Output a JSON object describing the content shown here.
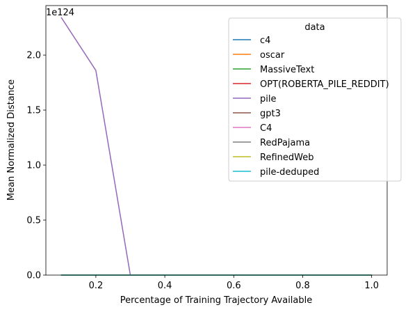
{
  "chart_data": {
    "type": "line",
    "title": "",
    "xlabel": "Percentage of Training Trajectory Available",
    "ylabel": "Mean Normalized Distance",
    "y_offset_text": "1e124",
    "y_scale_exponent": 124,
    "xlim": [
      0.055,
      1.045
    ],
    "ylim": [
      0,
      2.45
    ],
    "xticks": [
      0.2,
      0.4,
      0.6,
      0.8,
      1.0
    ],
    "xtick_labels": [
      "0.2",
      "0.4",
      "0.6",
      "0.8",
      "1.0"
    ],
    "yticks": [
      0,
      0.5,
      1.0,
      1.5,
      2.0
    ],
    "ytick_labels": [
      "0.0",
      "0.5",
      "1.0",
      "1.5",
      "2.0"
    ],
    "grid": false,
    "legend": {
      "title": "data",
      "placement": "top-right"
    },
    "x": [
      0.1,
      0.2,
      0.3,
      0.4,
      0.5,
      0.6,
      0.7,
      0.8,
      0.9,
      1.0
    ],
    "series": [
      {
        "name": "c4",
        "color": "#1f77b4",
        "values": [
          0,
          0,
          0,
          0,
          0,
          0,
          0,
          0,
          0,
          0
        ]
      },
      {
        "name": "oscar",
        "color": "#ff7f0e",
        "values": [
          0,
          0,
          0,
          0,
          0,
          0,
          0,
          0,
          0,
          0
        ]
      },
      {
        "name": "MassiveText",
        "color": "#2ca02c",
        "values": [
          0,
          0,
          0,
          0,
          0,
          0,
          0,
          0,
          0,
          0
        ]
      },
      {
        "name": "OPT(ROBERTA_PILE_REDDIT)",
        "color": "#d62728",
        "values": [
          0,
          0,
          0,
          0,
          0,
          0,
          0,
          0,
          0,
          0
        ]
      },
      {
        "name": "pile",
        "color": "#9467bd",
        "values": [
          2.34,
          1.86,
          0,
          0,
          0,
          0,
          0,
          0,
          0,
          0
        ]
      },
      {
        "name": "gpt3",
        "color": "#8c564b",
        "values": [
          0,
          0,
          0,
          0,
          0,
          0,
          0,
          0,
          0,
          0
        ]
      },
      {
        "name": "C4",
        "color": "#e377c2",
        "values": [
          0,
          0,
          0,
          0,
          0,
          0,
          0,
          0,
          0,
          0
        ]
      },
      {
        "name": "RedPajama",
        "color": "#7f7f7f",
        "values": [
          0,
          0,
          0,
          0,
          0,
          0,
          0,
          0,
          0,
          0
        ]
      },
      {
        "name": "RefinedWeb",
        "color": "#bcbd22",
        "values": [
          0,
          0,
          0,
          0,
          0,
          0,
          0,
          0,
          0,
          0
        ]
      },
      {
        "name": "pile-deduped",
        "color": "#17becf",
        "values": [
          0,
          0,
          0,
          0,
          0,
          0,
          0,
          0,
          0,
          0
        ]
      }
    ]
  }
}
